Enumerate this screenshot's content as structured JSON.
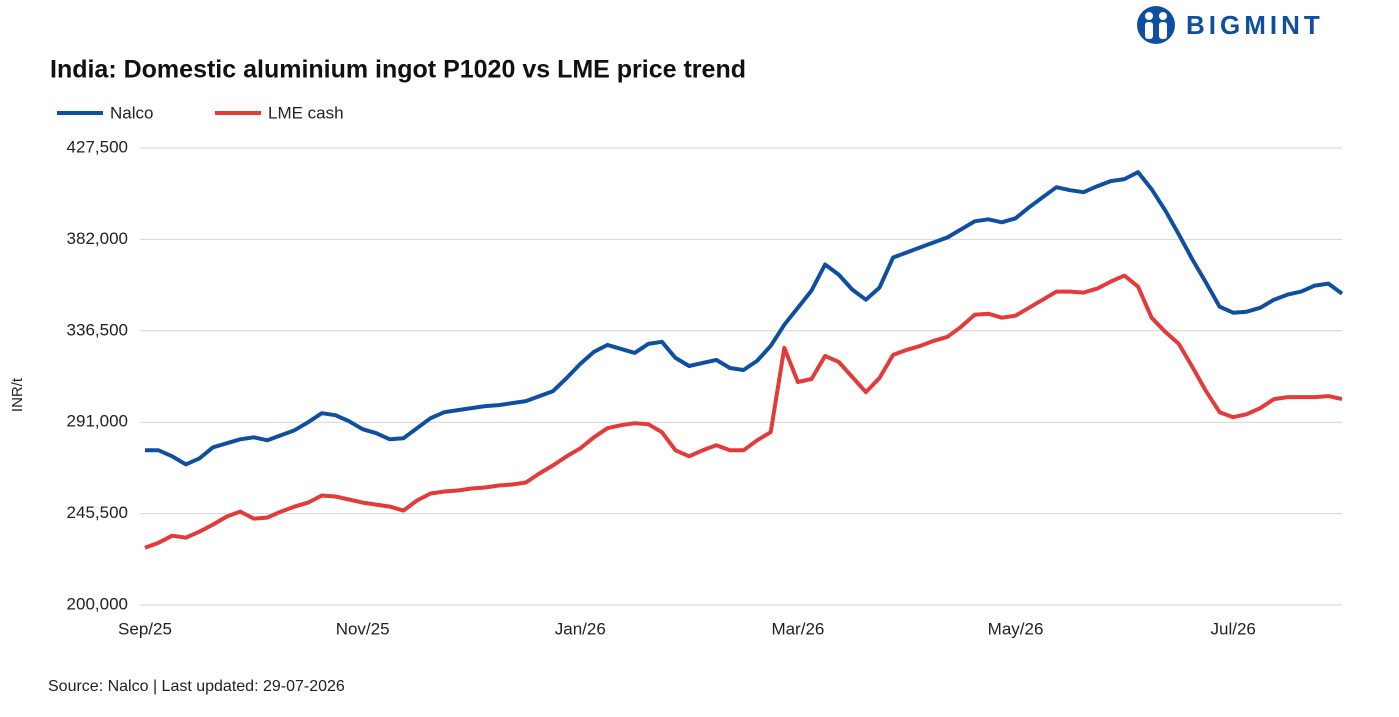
{
  "brand": "BIGMINT",
  "chart_data": {
    "type": "line",
    "title": "India: Domestic aluminium ingot P1020 vs LME price trend",
    "y_label": "INR/t",
    "source": "Source: Nalco | Last updated: 29-07-2026",
    "categories": [
      "Sep/25",
      null,
      null,
      null,
      null,
      null,
      null,
      null,
      null,
      null,
      null,
      null,
      null,
      null,
      null,
      null,
      "Nov/25",
      null,
      null,
      null,
      null,
      null,
      null,
      null,
      null,
      null,
      null,
      null,
      null,
      null,
      null,
      null,
      "Jan/26",
      null,
      null,
      null,
      null,
      null,
      null,
      null,
      null,
      null,
      null,
      null,
      null,
      null,
      null,
      null,
      "Mar/26",
      null,
      null,
      null,
      null,
      null,
      null,
      null,
      null,
      null,
      null,
      null,
      null,
      null,
      null,
      null,
      "May/26",
      null,
      null,
      null,
      null,
      null,
      null,
      null,
      null,
      null,
      null,
      null,
      null,
      null,
      null,
      null,
      "Jul/26",
      null,
      null,
      null,
      null,
      null,
      null,
      null,
      null
    ],
    "series": [
      {
        "name": "Nalco",
        "color": "#0f4fa0",
        "values": [
          277000,
          277000,
          274000,
          270000,
          273000,
          278500,
          280500,
          282500,
          283500,
          282000,
          284500,
          287000,
          291000,
          295500,
          294500,
          291500,
          287500,
          285500,
          282500,
          283000,
          288000,
          293000,
          296000,
          297000,
          298000,
          299000,
          299500,
          300500,
          301500,
          304000,
          306500,
          313000,
          320000,
          326000,
          329500,
          327500,
          325500,
          330000,
          331000,
          323000,
          319000,
          320500,
          322000,
          318000,
          317000,
          321500,
          329000,
          339500,
          348000,
          356500,
          369500,
          364500,
          357000,
          352000,
          358000,
          373000,
          375500,
          378000,
          380500,
          383000,
          387000,
          391000,
          392000,
          390500,
          392500,
          398000,
          403000,
          408000,
          406500,
          405500,
          408500,
          411000,
          412000,
          415500,
          407000,
          396500,
          384500,
          372000,
          360500,
          348500,
          345500,
          346000,
          348000,
          352000,
          354500,
          356000,
          359000,
          360000,
          355000
        ]
      },
      {
        "name": "LME cash",
        "color": "#e33a3a",
        "values": [
          228500,
          231000,
          234500,
          233500,
          236500,
          240000,
          244000,
          246500,
          243000,
          243500,
          246500,
          249000,
          251000,
          254500,
          254000,
          252500,
          251000,
          250000,
          249000,
          247000,
          252000,
          255500,
          256500,
          257000,
          258000,
          258500,
          259500,
          260000,
          261000,
          265500,
          269500,
          274000,
          278000,
          283500,
          288000,
          289500,
          290500,
          290000,
          286000,
          277000,
          274000,
          277000,
          279500,
          277000,
          277000,
          282000,
          286000,
          328000,
          311000,
          312500,
          324000,
          321000,
          313500,
          306000,
          313000,
          324500,
          327000,
          329000,
          331500,
          333500,
          338500,
          344500,
          345000,
          343000,
          344000,
          348000,
          352000,
          356000,
          356000,
          355500,
          357500,
          361000,
          364000,
          358500,
          343000,
          336000,
          330000,
          318500,
          306500,
          296000,
          293500,
          295000,
          298000,
          302500,
          303500,
          303500,
          303500,
          304000,
          302500
        ]
      }
    ],
    "ylim": [
      200000,
      427500
    ],
    "yticks": [
      {
        "value": 200000,
        "label": "200,000"
      },
      {
        "value": 245500,
        "label": "245,500"
      },
      {
        "value": 291000,
        "label": "291,000"
      },
      {
        "value": 336500,
        "label": "336,500"
      },
      {
        "value": 382000,
        "label": "382,000"
      },
      {
        "value": 427500,
        "label": "427,500"
      }
    ],
    "grid": true
  }
}
